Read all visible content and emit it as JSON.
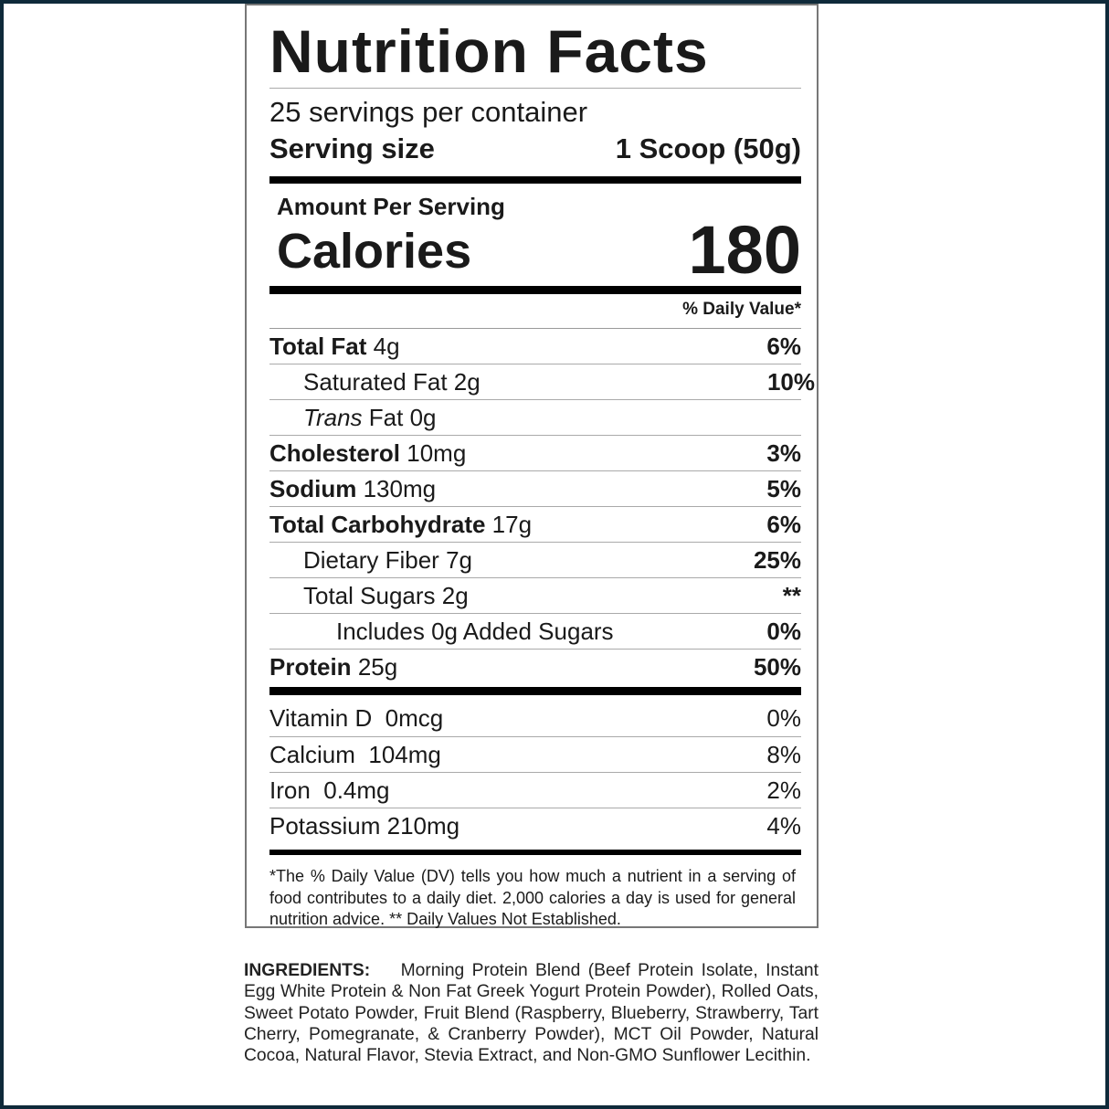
{
  "title": "Nutrition Facts",
  "servings": "25 servings per container",
  "serving_size": {
    "label": "Serving size",
    "value": "1 Scoop (50g)"
  },
  "amount_per_serving": "Amount Per Serving",
  "calories": {
    "label": "Calories",
    "value": "180"
  },
  "dv_header": "% Daily Value*",
  "nutrients": [
    {
      "name": "Total Fat",
      "amount": "4g",
      "dv": "6%"
    },
    {
      "name": "Saturated Fat",
      "amount": "2g",
      "dv": "10%"
    },
    {
      "name_italic": "Trans",
      "name": "Fat",
      "amount": "0g",
      "dv": ""
    },
    {
      "name": "Cholesterol",
      "amount": "10mg",
      "dv": "3%"
    },
    {
      "name": "Sodium",
      "amount": "130mg",
      "dv": "5%"
    },
    {
      "name": "Total Carbohydrate",
      "amount": "17g",
      "dv": "6%"
    },
    {
      "name": "Dietary Fiber",
      "amount": "7g",
      "dv": "25%"
    },
    {
      "name": "Total Sugars",
      "amount": "2g",
      "dv": "**"
    },
    {
      "name": "Includes 0g Added Sugars",
      "amount": "",
      "dv": "0%"
    },
    {
      "name": "Protein",
      "amount": "25g",
      "dv": "50%"
    }
  ],
  "vitamins": [
    {
      "name": "Vitamin D  0mcg",
      "dv": "0%"
    },
    {
      "name": "Calcium  104mg",
      "dv": "8%"
    },
    {
      "name": "Iron  0.4mg",
      "dv": "2%"
    },
    {
      "name": "Potassium 210mg",
      "dv": "4%"
    }
  ],
  "footnote": "*The % Daily Value (DV) tells you how much a nutrient in a serving of food contributes to a daily diet. 2,000 calories a day is used for general nutrition advice. ** Daily Values Not Established.",
  "ingredients": {
    "label": "INGREDIENTS:",
    "text": "Morning Protein Blend (Beef Protein Isolate, Instant Egg White Protein & Non Fat Greek Yogurt Protein Powder), Rolled Oats, Sweet Potato Powder, Fruit Blend (Raspberry, Blueberry, Strawberry, Tart Cherry, Pomegranate, & Cranberry Powder), MCT Oil Powder, Natural Cocoa, Natural Flavor, Stevia Extract, and Non-GMO Sunflower Lecithin."
  }
}
